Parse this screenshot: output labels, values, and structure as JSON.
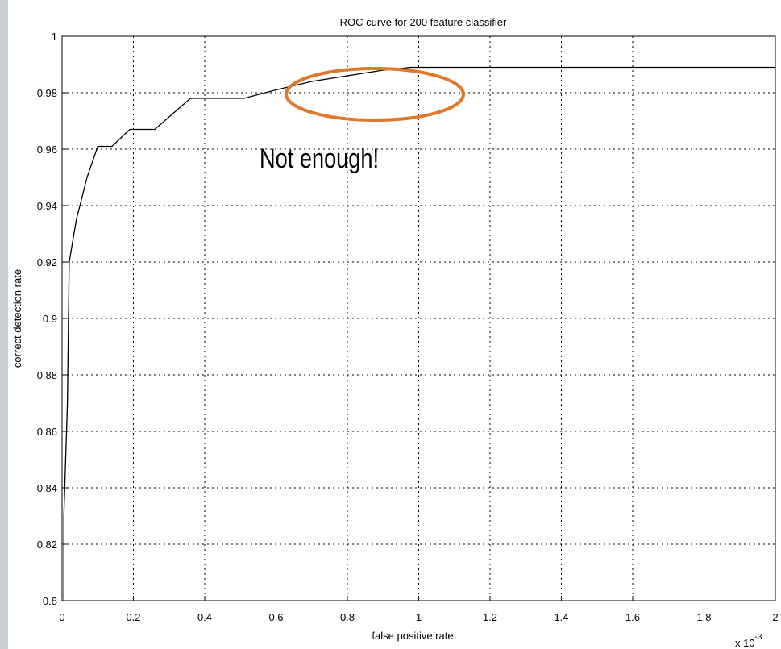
{
  "chart_data": {
    "type": "line",
    "title": "ROC curve for 200 feature classifier",
    "x_label": "false positive rate",
    "y_label": "correct detection rate",
    "x_scale_label": "x 10",
    "x_scale_exponent": "-3",
    "annotation": "Not enough!",
    "x": [
      0.005,
      0.005,
      0.015,
      0.02,
      0.04,
      0.07,
      0.1,
      0.14,
      0.19,
      0.26,
      0.36,
      0.51,
      0.6,
      0.7,
      0.8,
      0.9,
      0.98,
      2.0
    ],
    "values": [
      0.8,
      0.83,
      0.87,
      0.92,
      0.935,
      0.95,
      0.961,
      0.961,
      0.967,
      0.967,
      0.978,
      0.978,
      0.981,
      0.984,
      0.986,
      0.988,
      0.989,
      0.989
    ],
    "color": "#000000",
    "xlim": [
      0,
      2
    ],
    "ylim": [
      0.8,
      1
    ],
    "xticks": [
      0,
      0.2,
      0.4,
      0.6,
      0.8,
      1,
      1.2,
      1.4,
      1.6,
      1.8,
      2
    ],
    "yticks": [
      0.8,
      0.82,
      0.84,
      0.86,
      0.88,
      0.9,
      0.92,
      0.94,
      0.96,
      0.98,
      1
    ],
    "grid": true
  }
}
